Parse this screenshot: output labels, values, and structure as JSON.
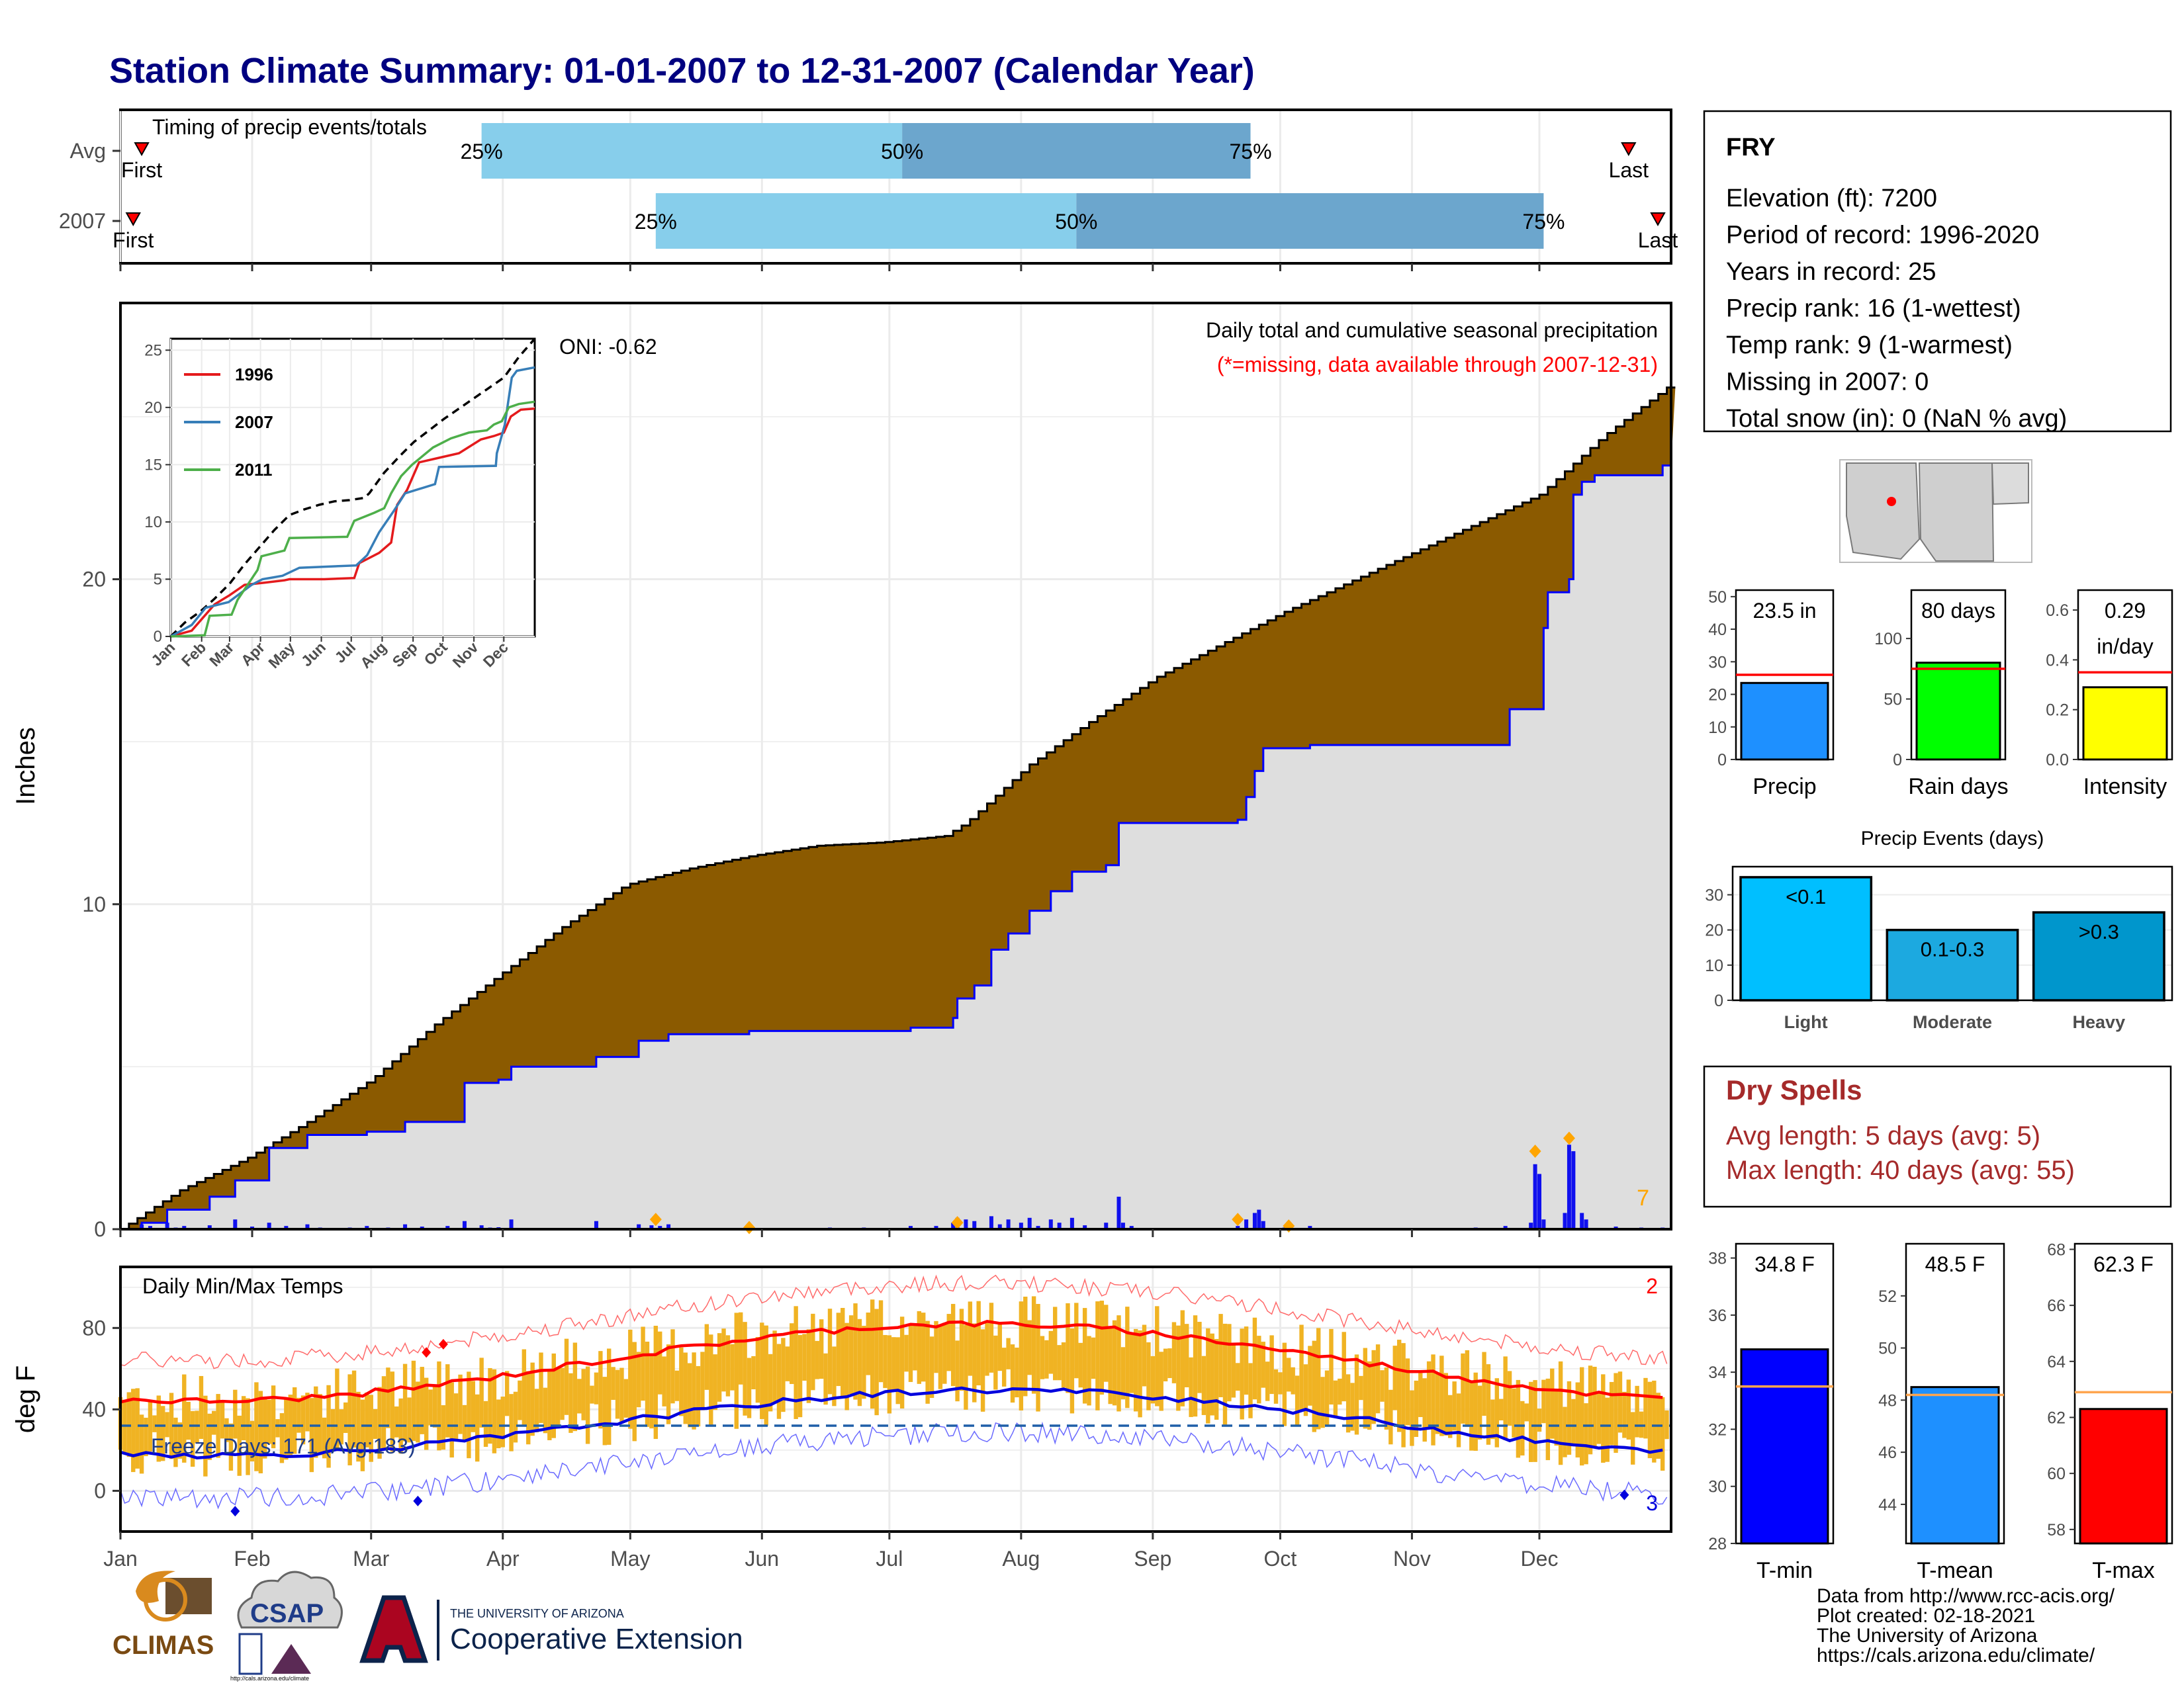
{
  "title": "Station Climate Summary: 01-01-2007 to 12-31-2007 (Calendar Year)",
  "colors": {
    "title": "#000080",
    "accum_fill": "#8B5A00",
    "current_fill": "#DEDEDE",
    "current_line": "#0000FF",
    "precip_bar": "#1010EE",
    "daily_range": "#F0B323",
    "tmax_avg": "#FF0000",
    "tmin_avg": "#0000DD",
    "timing_light": "#87CEEB",
    "timing_dark": "#6CA6CD",
    "dry_spells": "#A52A2A"
  },
  "timing": {
    "label": "Timing of precip events/totals",
    "rows": [
      {
        "name": "Avg",
        "first_doy": 6,
        "q25_doy": 86,
        "q50_doy": 185,
        "q75_doy": 267,
        "last_doy": 356
      },
      {
        "name": "2007",
        "first_doy": 4,
        "q25_doy": 127,
        "q50_doy": 226,
        "q75_doy": 336,
        "last_doy": 366
      }
    ],
    "labels": {
      "first": "First",
      "last": "Last",
      "q25": "25%",
      "q50": "50%",
      "q75": "75%"
    }
  },
  "month_labels": [
    "Jan",
    "Feb",
    "Mar",
    "Apr",
    "May",
    "Jun",
    "Jul",
    "Aug",
    "Sep",
    "Oct",
    "Nov",
    "Dec"
  ],
  "precip": {
    "ylabel": "Inches",
    "ylim": [
      0,
      28.5
    ],
    "yticks": [
      0,
      10,
      20
    ],
    "oni": "ONI: -0.62",
    "subtitle": "Daily total and cumulative seasonal precipitation",
    "missing_note": "(*=missing, data available through 2007-12-31)",
    "extreme_count": "7",
    "avg_cumulative": [
      [
        1,
        0.0
      ],
      [
        15,
        1.2
      ],
      [
        31,
        2.2
      ],
      [
        45,
        3.3
      ],
      [
        60,
        4.6
      ],
      [
        75,
        6.3
      ],
      [
        90,
        7.8
      ],
      [
        105,
        9.3
      ],
      [
        120,
        10.6
      ],
      [
        135,
        11.1
      ],
      [
        150,
        11.5
      ],
      [
        165,
        11.8
      ],
      [
        180,
        11.9
      ],
      [
        195,
        12.1
      ],
      [
        200,
        12.5
      ],
      [
        215,
        14.3
      ],
      [
        230,
        15.7
      ],
      [
        245,
        17.0
      ],
      [
        260,
        18.0
      ],
      [
        275,
        19.0
      ],
      [
        290,
        19.9
      ],
      [
        305,
        20.8
      ],
      [
        320,
        21.7
      ],
      [
        335,
        22.6
      ],
      [
        350,
        24.4
      ],
      [
        366,
        26.0
      ]
    ],
    "current_cumulative": [
      [
        1,
        0.0
      ],
      [
        6,
        0.2
      ],
      [
        12,
        0.6
      ],
      [
        22,
        1.0
      ],
      [
        28,
        1.5
      ],
      [
        36,
        2.5
      ],
      [
        45,
        2.9
      ],
      [
        59,
        3.0
      ],
      [
        68,
        3.3
      ],
      [
        82,
        4.5
      ],
      [
        90,
        4.6
      ],
      [
        93,
        5.0
      ],
      [
        112,
        5.0
      ],
      [
        113,
        5.3
      ],
      [
        123,
        5.8
      ],
      [
        130,
        6.0
      ],
      [
        148,
        6.0
      ],
      [
        149,
        6.1
      ],
      [
        184,
        6.1
      ],
      [
        187,
        6.2
      ],
      [
        197,
        6.5
      ],
      [
        198,
        7.1
      ],
      [
        202,
        7.5
      ],
      [
        206,
        8.6
      ],
      [
        210,
        9.1
      ],
      [
        215,
        9.8
      ],
      [
        220,
        10.4
      ],
      [
        225,
        11.0
      ],
      [
        233,
        11.2
      ],
      [
        236,
        12.5
      ],
      [
        264,
        12.6
      ],
      [
        266,
        13.3
      ],
      [
        268,
        14.1
      ],
      [
        270,
        14.8
      ],
      [
        281,
        14.9
      ],
      [
        300,
        14.9
      ],
      [
        327,
        14.9
      ],
      [
        328,
        16.0
      ],
      [
        334,
        16.0
      ],
      [
        336,
        18.5
      ],
      [
        337,
        19.6
      ],
      [
        342,
        20.0
      ],
      [
        343,
        22.6
      ],
      [
        345,
        23.0
      ],
      [
        348,
        23.2
      ],
      [
        364,
        23.5
      ],
      [
        366,
        23.5
      ]
    ],
    "daily_bars": [
      [
        6,
        0.15
      ],
      [
        8,
        0.1
      ],
      [
        12,
        0.2
      ],
      [
        14,
        0.05
      ],
      [
        16,
        0.1
      ],
      [
        22,
        0.12
      ],
      [
        28,
        0.3
      ],
      [
        32,
        0.08
      ],
      [
        36,
        0.2
      ],
      [
        40,
        0.1
      ],
      [
        45,
        0.15
      ],
      [
        48,
        0.05
      ],
      [
        55,
        0.05
      ],
      [
        59,
        0.1
      ],
      [
        64,
        0.05
      ],
      [
        68,
        0.15
      ],
      [
        72,
        0.08
      ],
      [
        78,
        0.1
      ],
      [
        82,
        0.25
      ],
      [
        86,
        0.12
      ],
      [
        88,
        0.05
      ],
      [
        90,
        0.06
      ],
      [
        93,
        0.3
      ],
      [
        113,
        0.25
      ],
      [
        123,
        0.15
      ],
      [
        126,
        0.12
      ],
      [
        128,
        0.1
      ],
      [
        130,
        0.15
      ],
      [
        149,
        0.1
      ],
      [
        168,
        0.05
      ],
      [
        176,
        0.05
      ],
      [
        187,
        0.1
      ],
      [
        193,
        0.1
      ],
      [
        197,
        0.2
      ],
      [
        198,
        0.35
      ],
      [
        200,
        0.3
      ],
      [
        202,
        0.25
      ],
      [
        206,
        0.4
      ],
      [
        208,
        0.15
      ],
      [
        210,
        0.3
      ],
      [
        213,
        0.2
      ],
      [
        215,
        0.35
      ],
      [
        217,
        0.1
      ],
      [
        220,
        0.3
      ],
      [
        222,
        0.2
      ],
      [
        225,
        0.35
      ],
      [
        228,
        0.12
      ],
      [
        233,
        0.2
      ],
      [
        236,
        1.0
      ],
      [
        237,
        0.2
      ],
      [
        239,
        0.1
      ],
      [
        264,
        0.1
      ],
      [
        266,
        0.3
      ],
      [
        268,
        0.5
      ],
      [
        269,
        0.6
      ],
      [
        270,
        0.25
      ],
      [
        275,
        0.05
      ],
      [
        281,
        0.1
      ],
      [
        320,
        0.05
      ],
      [
        327,
        0.1
      ],
      [
        333,
        0.2
      ],
      [
        334,
        2.0
      ],
      [
        335,
        1.7
      ],
      [
        336,
        0.3
      ],
      [
        341,
        0.5
      ],
      [
        342,
        2.6
      ],
      [
        343,
        2.4
      ],
      [
        345,
        0.5
      ],
      [
        346,
        0.3
      ],
      [
        353,
        0.08
      ],
      [
        359,
        0.05
      ],
      [
        364,
        0.05
      ]
    ],
    "extreme_markers": [
      [
        127,
        0.3
      ],
      [
        149,
        0.05
      ],
      [
        198,
        0.2
      ],
      [
        264,
        0.3
      ],
      [
        276,
        0.1
      ],
      [
        334,
        2.4
      ],
      [
        342,
        2.8
      ]
    ]
  },
  "inset": {
    "ylim": [
      0,
      26
    ],
    "yticks": [
      0,
      5,
      10,
      15,
      20,
      25
    ],
    "month_labels": [
      "Jan",
      "Feb",
      "Mar",
      "Apr",
      "May",
      "Jun",
      "Jul",
      "Aug",
      "Sep",
      "Oct",
      "Nov",
      "Dec"
    ],
    "series": [
      {
        "name": "1996",
        "color": "#E41A1C",
        "points": [
          [
            1,
            0
          ],
          [
            22,
            0.5
          ],
          [
            45,
            2.8
          ],
          [
            60,
            3.6
          ],
          [
            75,
            4.5
          ],
          [
            95,
            4.7
          ],
          [
            115,
            4.9
          ],
          [
            120,
            5.0
          ],
          [
            155,
            5.0
          ],
          [
            185,
            5.1
          ],
          [
            190,
            6.4
          ],
          [
            210,
            7.3
          ],
          [
            222,
            8.2
          ],
          [
            228,
            11.5
          ],
          [
            238,
            12.8
          ],
          [
            250,
            15.2
          ],
          [
            270,
            15.6
          ],
          [
            290,
            16.0
          ],
          [
            312,
            17.2
          ],
          [
            325,
            17.5
          ],
          [
            335,
            17.8
          ],
          [
            342,
            19.2
          ],
          [
            352,
            19.8
          ],
          [
            366,
            19.9
          ]
        ]
      },
      {
        "name": "2007",
        "color": "#377EB8",
        "points": [
          [
            1,
            0
          ],
          [
            22,
            1.0
          ],
          [
            36,
            2.5
          ],
          [
            59,
            3.0
          ],
          [
            82,
            4.5
          ],
          [
            93,
            5.0
          ],
          [
            113,
            5.3
          ],
          [
            130,
            6.0
          ],
          [
            187,
            6.2
          ],
          [
            198,
            7.1
          ],
          [
            210,
            9.1
          ],
          [
            225,
            11.0
          ],
          [
            236,
            12.5
          ],
          [
            266,
            13.3
          ],
          [
            270,
            14.8
          ],
          [
            327,
            14.9
          ],
          [
            328,
            16.0
          ],
          [
            336,
            18.5
          ],
          [
            343,
            22.6
          ],
          [
            348,
            23.2
          ],
          [
            366,
            23.5
          ]
        ]
      },
      {
        "name": "2011",
        "color": "#4DAF4A",
        "points": [
          [
            1,
            0
          ],
          [
            35,
            0.1
          ],
          [
            40,
            1.8
          ],
          [
            62,
            1.9
          ],
          [
            68,
            3.2
          ],
          [
            88,
            5.8
          ],
          [
            92,
            7.0
          ],
          [
            115,
            7.5
          ],
          [
            120,
            8.6
          ],
          [
            178,
            8.7
          ],
          [
            185,
            10.1
          ],
          [
            205,
            10.8
          ],
          [
            215,
            11.2
          ],
          [
            222,
            12.5
          ],
          [
            232,
            14.0
          ],
          [
            243,
            15.0
          ],
          [
            264,
            16.5
          ],
          [
            282,
            17.3
          ],
          [
            300,
            17.8
          ],
          [
            318,
            18.0
          ],
          [
            325,
            18.5
          ],
          [
            333,
            18.8
          ],
          [
            340,
            20.0
          ],
          [
            350,
            20.3
          ],
          [
            366,
            20.5
          ]
        ]
      }
    ]
  },
  "temps": {
    "ylabel": "deg F",
    "label": "Daily Min/Max Temps",
    "yticks": [
      0,
      40,
      80
    ],
    "ylim": [
      -20,
      110
    ],
    "freeze_label": "Freeze Days: 171 (Avg:183)",
    "freeze_line": 32,
    "record_high_count": "2",
    "record_low_count": "3"
  },
  "station": {
    "name": "FRY",
    "lines": [
      "Elevation (ft): 7200",
      "Period of record: 1996-2020",
      "Years in record: 25",
      "Precip rank: 16 (1-wettest)",
      "Temp rank: 9 (1-warmest)",
      "Missing in 2007: 0",
      "Total snow (in): 0 (NaN % avg)"
    ]
  },
  "small_bars": [
    {
      "label": "Precip",
      "value": 23.5,
      "avg": 26.0,
      "ylim": [
        0,
        52
      ],
      "yticks": [
        0,
        10,
        20,
        30,
        40,
        50
      ],
      "value_label": "23.5 in",
      "color": "#1E90FF"
    },
    {
      "label": "Rain days",
      "value": 80,
      "avg": 75,
      "ylim": [
        0,
        140
      ],
      "yticks": [
        0,
        50,
        100
      ],
      "value_label": "80 days",
      "color": "#00FF00"
    },
    {
      "label": "Intensity",
      "value": 0.29,
      "avg": 0.35,
      "ylim": [
        0,
        0.68
      ],
      "yticks": [
        0.0,
        0.2,
        0.4,
        0.6
      ],
      "value_label": "0.29",
      "value_label2": "in/day",
      "color": "#FFFF00"
    }
  ],
  "events": {
    "title": "Precip Events (days)",
    "categories": [
      "Light",
      "Moderate",
      "Heavy"
    ],
    "bar_labels": [
      "<0.1",
      "0.1-0.3",
      ">0.3"
    ],
    "values": [
      35,
      20,
      25
    ],
    "ylim": [
      0,
      38
    ],
    "yticks": [
      0,
      10,
      20,
      30
    ],
    "colors": [
      "#00BFFF",
      "#1CA9E0",
      "#0096CC"
    ]
  },
  "dry_spells": {
    "title": "Dry Spells",
    "lines": [
      "Avg length: 5 days (avg: 5)",
      "Max length: 40 days (avg: 55)"
    ]
  },
  "temp_bars": [
    {
      "label": "T-min",
      "value": 34.8,
      "avg": 33.5,
      "ylim": [
        28,
        38.5
      ],
      "yticks": [
        28,
        30,
        32,
        34,
        36,
        38
      ],
      "value_label": "34.8 F",
      "color": "#0000FF"
    },
    {
      "label": "T-mean",
      "value": 48.5,
      "avg": 48.2,
      "ylim": [
        42.5,
        54
      ],
      "yticks": [
        44,
        46,
        48,
        50,
        52
      ],
      "value_label": "48.5 F",
      "color": "#1E90FF"
    },
    {
      "label": "T-max",
      "value": 62.3,
      "avg": 62.9,
      "ylim": [
        57.5,
        68.2
      ],
      "yticks": [
        58,
        60,
        62,
        64,
        66,
        68
      ],
      "value_label": "62.3 F",
      "color": "#FF0000"
    }
  ],
  "footer": {
    "lines": [
      "Data from http://www.rcc-acis.org/",
      "Plot created: 02-18-2021",
      "The University of Arizona",
      "https://cals.arizona.edu/climate/"
    ],
    "logo_climas": "CLIMAS",
    "logo_csap": "CSAP",
    "logo_csap_url": "http://cals.arizona.edu/climate",
    "ua_small": "THE UNIVERSITY OF ARIZONA",
    "ua_big": "Cooperative Extension"
  }
}
